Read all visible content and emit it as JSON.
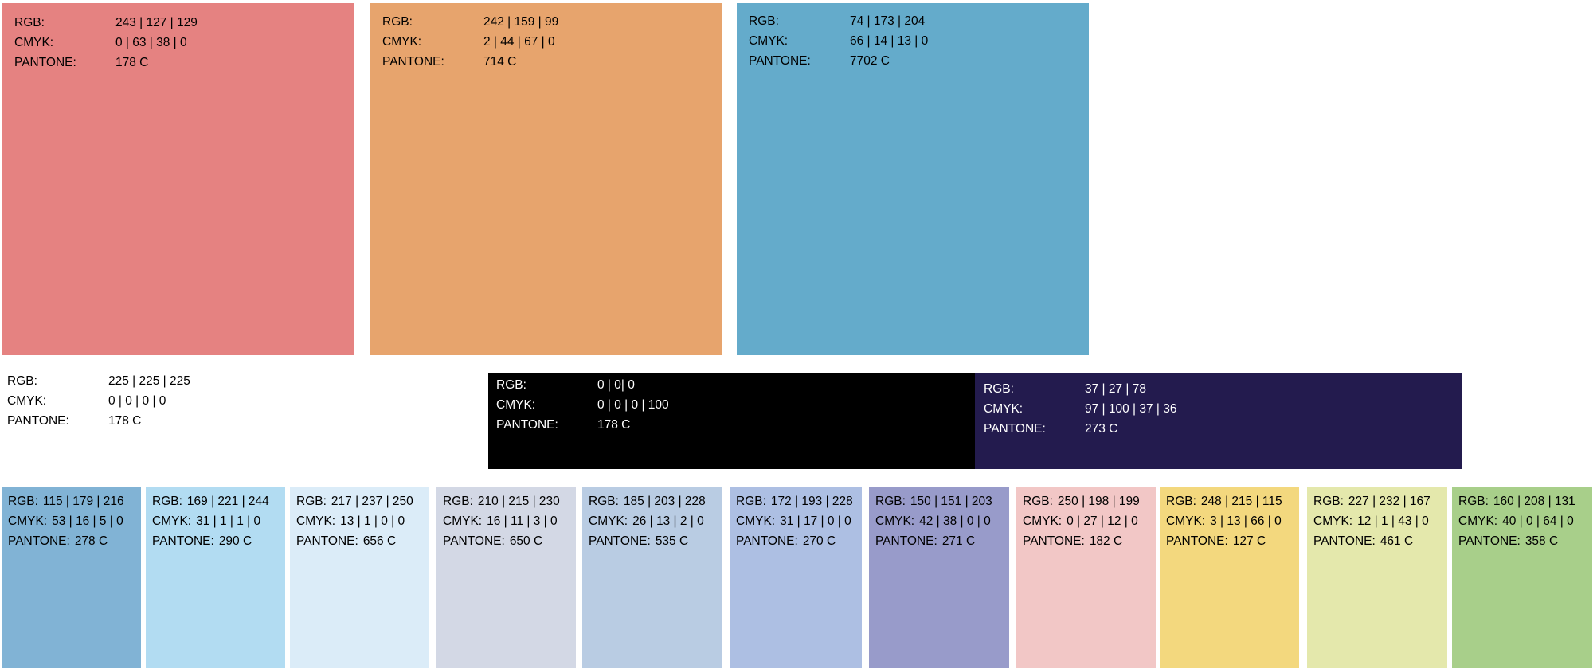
{
  "labels": {
    "rgb": "RGB:",
    "cmyk": "CMYK:",
    "pantone": "PANTONE:"
  },
  "big_swatches": [
    {
      "rgb": "243 | 127 | 129",
      "cmyk": "0 | 63 | 38 | 0",
      "pantone": "178 C",
      "color": "#e58281"
    },
    {
      "rgb": "242 | 159 | 99",
      "cmyk": "2 | 44 | 67 | 0",
      "pantone": "714 C",
      "color": "#e7a46d"
    },
    {
      "rgb": "74 | 173 | 204",
      "cmyk": "66 | 14 | 13 | 0",
      "pantone": "7702 C",
      "color": "#64abcb"
    }
  ],
  "mid_swatches": [
    {
      "rgb": "225 | 225 | 225",
      "cmyk": "0 | 0 | 0 | 0",
      "pantone": "178 C",
      "color": "#ffffff"
    },
    {
      "rgb": "0 | 0| 0",
      "cmyk": "0 | 0 | 0 | 100",
      "pantone": "178 C",
      "color": "#000000"
    },
    {
      "rgb": "37 | 27 | 78",
      "cmyk": "97 | 100 | 37 | 36",
      "pantone": "273 C",
      "color": "#231b4e"
    }
  ],
  "small_swatches": [
    {
      "rgb": "115 | 179 | 216",
      "cmyk": "53 | 16 | 5 | 0",
      "pantone": "278 C",
      "color": "#81b3d5"
    },
    {
      "rgb": "169 | 221 | 244",
      "cmyk": "31 | 1 | 1 | 0",
      "pantone": "290 C",
      "color": "#b2dcf2"
    },
    {
      "rgb": "217 | 237 | 250",
      "cmyk": "13 | 1 | 0 | 0",
      "pantone": "656 C",
      "color": "#dbecf8"
    },
    {
      "rgb": "210 | 215 | 230",
      "cmyk": "16 | 11 | 3 | 0",
      "pantone": "650 C",
      "color": "#d3d8e5"
    },
    {
      "rgb": "185 | 203 | 228",
      "cmyk": "26 | 13 | 2 | 0",
      "pantone": "535 C",
      "color": "#b9cce3"
    },
    {
      "rgb": "172 | 193 | 228",
      "cmyk": "31 | 17 | 0 | 0",
      "pantone": "270 C",
      "color": "#adbfe3"
    },
    {
      "rgb": "150 | 151 | 203",
      "cmyk": "42 | 38 | 0 | 0",
      "pantone": "271 C",
      "color": "#989bca"
    },
    {
      "rgb": "250 | 198 | 199",
      "cmyk": "0 | 27 | 12 | 0",
      "pantone": "182 C",
      "color": "#f2c7c6"
    },
    {
      "rgb": "248 | 215 | 115",
      "cmyk": "3 | 13 | 66 | 0",
      "pantone": "127 C",
      "color": "#f3d87e"
    },
    {
      "rgb": "227 | 232 | 167",
      "cmyk": "12 | 1 | 43 | 0",
      "pantone": "461 C",
      "color": "#e4e8ac"
    },
    {
      "rgb": "160 | 208 | 131",
      "cmyk": "40 | 0 | 64 | 0",
      "pantone": "358 C",
      "color": "#a8cf8a"
    }
  ]
}
